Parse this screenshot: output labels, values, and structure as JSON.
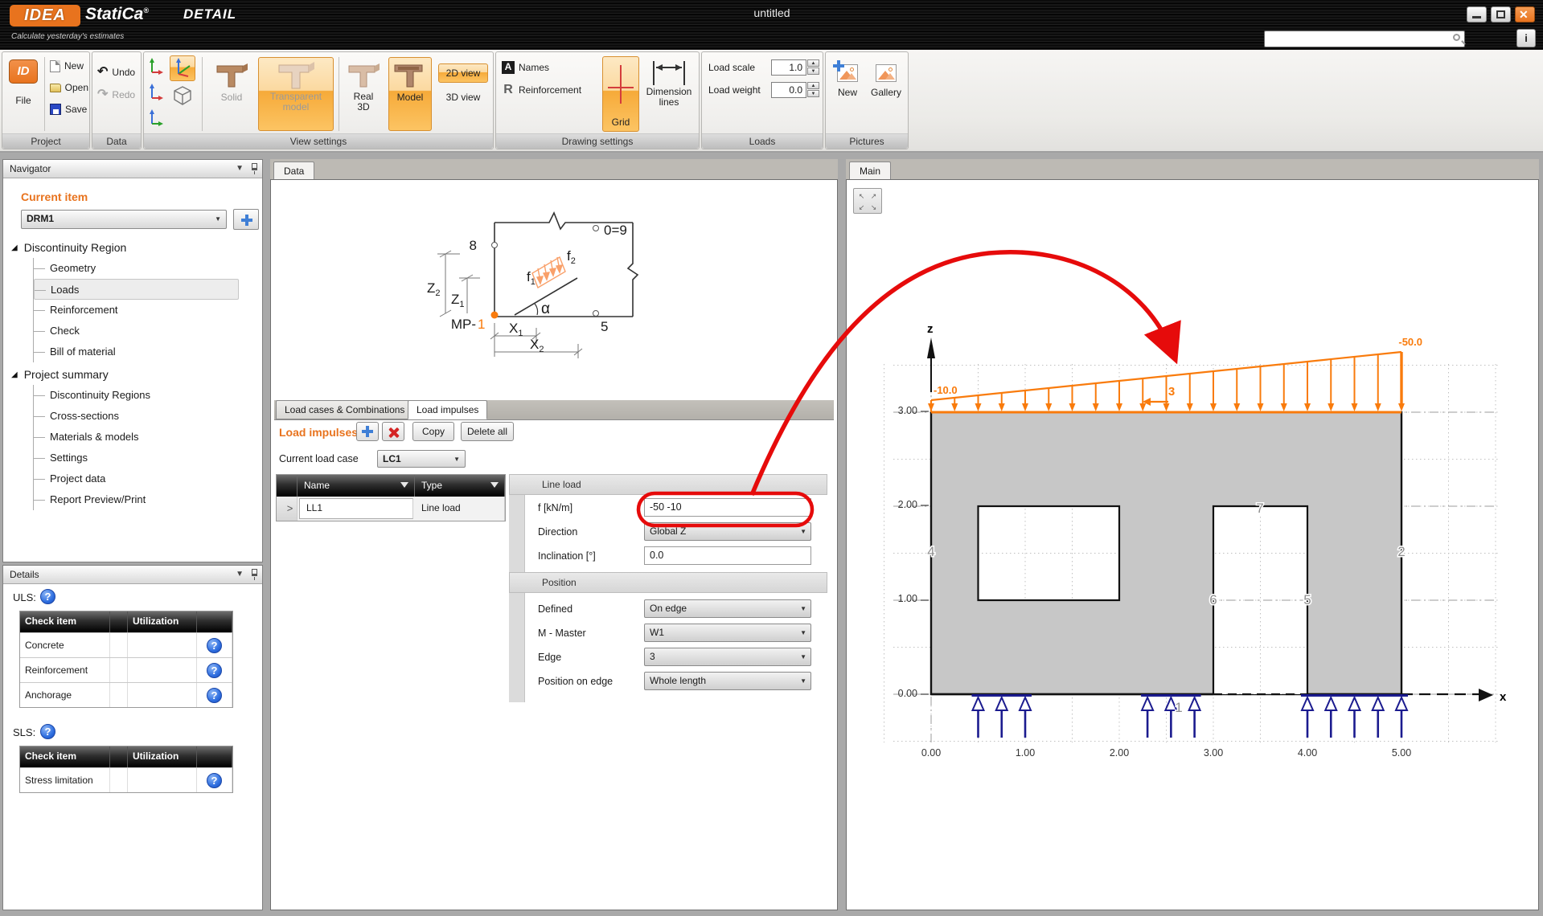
{
  "window": {
    "title": "untitled",
    "logo_box": "IDEA",
    "brand": "StatiCa",
    "registered": "®",
    "product": "DETAIL",
    "tagline": "Calculate yesterday's estimates",
    "search_value": "",
    "info_icon": "i"
  },
  "ribbon": {
    "project": {
      "label": "Project",
      "file": "File",
      "file_icon": "ID",
      "new": "New",
      "open": "Open",
      "save": "Save"
    },
    "data": {
      "label": "Data",
      "undo": "Undo",
      "redo": "Redo",
      "undo_icon": "↶",
      "redo_icon": "↷"
    },
    "view": {
      "label": "View settings",
      "solid": "Solid",
      "transparent_line1": "Transparent",
      "transparent_line2": "model",
      "real3d_line1": "Real",
      "real3d_line2": "3D",
      "model": "Model",
      "view2d": "2D view",
      "view3d": "3D view"
    },
    "drawing": {
      "label": "Drawing settings",
      "names_icon": "A",
      "names": "Names",
      "reinf_icon": "R",
      "reinforcement": "Reinforcement",
      "grid": "Grid",
      "dim_line1": "Dimension",
      "dim_line2": "lines"
    },
    "loads": {
      "label": "Loads",
      "scale_label": "Load scale",
      "scale_value": "1.0",
      "weight_label": "Load weight",
      "weight_value": "0.0",
      "up": "▲",
      "down": "▼"
    },
    "pictures": {
      "label": "Pictures",
      "new": "New",
      "gallery": "Gallery"
    }
  },
  "navigator": {
    "title": "Navigator",
    "current_item": "Current item",
    "combo_value": "DRM1",
    "group1": "Discontinuity Region",
    "g1_items": [
      "Geometry",
      "Loads",
      "Reinforcement",
      "Check",
      "Bill of material"
    ],
    "group2": "Project summary",
    "g2_items": [
      "Discontinuity Regions",
      "Cross-sections",
      "Materials & models",
      "Settings",
      "Project data",
      "Report Preview/Print"
    ]
  },
  "details": {
    "title": "Details",
    "uls": "ULS:",
    "sls": "SLS:",
    "help": "?",
    "col_item": "Check item",
    "col_util": "Utilization",
    "uls_rows": [
      "Concrete",
      "Reinforcement",
      "Anchorage"
    ],
    "sls_rows": [
      "Stress limitation"
    ]
  },
  "data_panel": {
    "tab": "Data",
    "tab1": "Load cases & Combinations",
    "tab2": "Load impulses",
    "title": "Load impulses",
    "copy": "Copy",
    "delete_all": "Delete all",
    "load_case_label": "Current load case",
    "load_case_value": "LC1",
    "col_name": "Name",
    "col_type": "Type",
    "row_marker": ">",
    "row_name": "LL1",
    "row_type": "Line load",
    "form": {
      "group1": "Line load",
      "f_label": "f [kN/m]",
      "f_value": "-50 -10",
      "direction": "Direction",
      "direction_value": "Global Z",
      "inclination": "Inclination [°]",
      "inclination_value": "0.0",
      "group2": "Position",
      "defined": "Defined",
      "defined_value": "On edge",
      "master": "M - Master",
      "master_value": "W1",
      "edge": "Edge",
      "edge_value": "3",
      "pos": "Position on edge",
      "pos_value": "Whole length"
    },
    "diagram": {
      "n8": "8",
      "n09": "0=9",
      "n5": "5",
      "mp": "MP-",
      "mp_n": "1",
      "f": "f",
      "s1": "1",
      "s2": "2",
      "z": "Z",
      "x": "X",
      "alpha": "α"
    }
  },
  "main_view": {
    "tab": "Main",
    "fit_icons": [
      "↖",
      "↗",
      "↙",
      "↘"
    ],
    "z_label": "z",
    "x_label": "x",
    "z_ticks": [
      "3.00",
      "2.00",
      "1.00",
      "0.00"
    ],
    "x_ticks": [
      "0.00",
      "1.00",
      "2.00",
      "3.00",
      "4.00",
      "5.00"
    ],
    "load_left": "-10.0",
    "load_right": "-50.0",
    "edge3": "3",
    "e4": "4",
    "e2": "2",
    "e7": "7",
    "e6": "6",
    "e5": "5",
    "e1": "1",
    "colors": {
      "load": "#f97b0c",
      "support": "#1b1b8f",
      "wall": "#c7c7c7",
      "annotation": "#e60b0b"
    }
  }
}
